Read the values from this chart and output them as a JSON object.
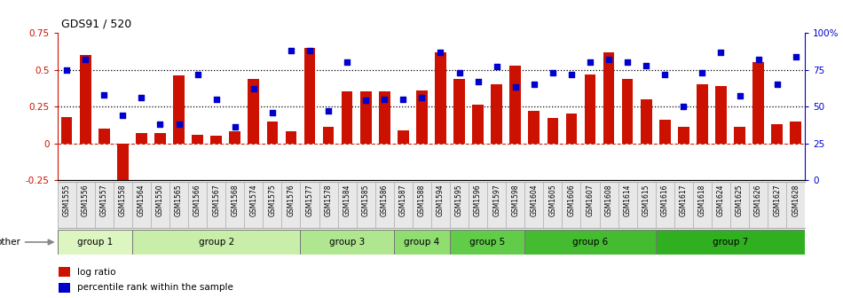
{
  "title": "GDS91 / 520",
  "samples": [
    "GSM1555",
    "GSM1556",
    "GSM1557",
    "GSM1558",
    "GSM1564",
    "GSM1550",
    "GSM1565",
    "GSM1566",
    "GSM1567",
    "GSM1568",
    "GSM1574",
    "GSM1575",
    "GSM1576",
    "GSM1577",
    "GSM1578",
    "GSM1584",
    "GSM1585",
    "GSM1586",
    "GSM1587",
    "GSM1588",
    "GSM1594",
    "GSM1595",
    "GSM1596",
    "GSM1597",
    "GSM1598",
    "GSM1604",
    "GSM1605",
    "GSM1606",
    "GSM1607",
    "GSM1608",
    "GSM1614",
    "GSM1615",
    "GSM1616",
    "GSM1617",
    "GSM1618",
    "GSM1624",
    "GSM1625",
    "GSM1626",
    "GSM1627",
    "GSM1628"
  ],
  "log_ratio": [
    0.18,
    0.6,
    0.1,
    -0.3,
    0.07,
    0.07,
    0.46,
    0.06,
    0.05,
    0.08,
    0.44,
    0.15,
    0.08,
    0.65,
    0.11,
    0.35,
    0.35,
    0.35,
    0.09,
    0.36,
    0.62,
    0.44,
    0.26,
    0.4,
    0.53,
    0.22,
    0.17,
    0.2,
    0.47,
    0.62,
    0.44,
    0.3,
    0.16,
    0.11,
    0.4,
    0.39,
    0.11,
    0.55,
    0.13,
    0.15
  ],
  "percentile": [
    75,
    82,
    58,
    44,
    56,
    38,
    38,
    72,
    55,
    36,
    62,
    46,
    88,
    88,
    47,
    80,
    54,
    55,
    55,
    56,
    87,
    73,
    67,
    77,
    63,
    65,
    73,
    72,
    80,
    82,
    80,
    78,
    72,
    50,
    73,
    87,
    57,
    82,
    65,
    84
  ],
  "groups": [
    {
      "label": "group 1",
      "start": 0,
      "end": 3,
      "color": "#ddf5c0"
    },
    {
      "label": "group 2",
      "start": 4,
      "end": 12,
      "color": "#c8eeaa"
    },
    {
      "label": "group 3",
      "start": 13,
      "end": 17,
      "color": "#b0e690"
    },
    {
      "label": "group 4",
      "start": 18,
      "end": 20,
      "color": "#90dd70"
    },
    {
      "label": "group 5",
      "start": 21,
      "end": 24,
      "color": "#60cc48"
    },
    {
      "label": "group 6",
      "start": 25,
      "end": 31,
      "color": "#44bb30"
    },
    {
      "label": "group 7",
      "start": 32,
      "end": 39,
      "color": "#30b020"
    }
  ],
  "bar_color": "#cc1100",
  "dot_color": "#0000cc",
  "ylim_left": [
    -0.25,
    0.75
  ],
  "ylim_right": [
    0,
    100
  ],
  "yticks_left": [
    -0.25,
    0,
    0.25,
    0.5,
    0.75
  ],
  "ytick_labels_left": [
    "-0.25",
    "0",
    "0.25",
    "0.5",
    "0.75"
  ],
  "yticks_right": [
    0,
    25,
    50,
    75,
    100
  ],
  "ytick_labels_right": [
    "0",
    "25",
    "50",
    "75",
    "100%"
  ],
  "background_color": "#ffffff",
  "xtick_bg": "#e8e8e8",
  "other_arrow_color": "#888888"
}
